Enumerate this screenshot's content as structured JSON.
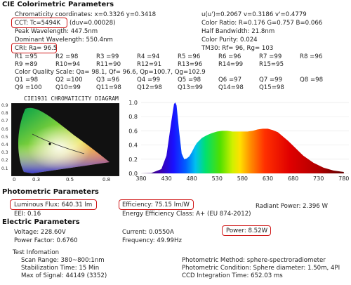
{
  "cie": {
    "title": "CIE Colorimetric Parameters",
    "chroma_xy": "Chromaticity coordinates: x=0.3326  y=0.3418",
    "chroma_uv": "u(u')=0.2067  v=0.3186  v'=0.4779",
    "cct": "CCT: Tc=5494K",
    "duv": "(duv=0.00028)",
    "color_ratio": "Color Ratio: R=0.176  G=0.757  B=0.066",
    "peak_wl": "Peak Wavelength: 447.5nm",
    "half_bw": "Half Bandwidth: 21.8nm",
    "dom_wl": "Dominant Wavelength: 550.4nm",
    "purity": "Color Purity: 0.024",
    "cri": "CRI: Ra= 96.5",
    "tm30": "TM30: Rf=    96, Rg=   103",
    "r_rows": [
      [
        "R1  =95",
        "R2  =98",
        "R3  =99",
        "R4  =94",
        "R5  =96",
        "R6  =96",
        "R7  =99",
        "R8  =96"
      ],
      [
        "R9  =89",
        "R10=94",
        "R11=90",
        "R12=91",
        "R13=96",
        "R14=99",
        "R15=95"
      ]
    ],
    "cqs": "Color Quality Scale: Qa= 98.1, Qf= 96.6, Qp=100.7, Qg=102.9",
    "q_rows": [
      [
        "Q1  =98",
        "Q2  =100",
        "Q3  =96",
        "Q4  =99",
        "Q5  =98",
        "Q6  =97",
        "Q7  =99",
        "Q8  =98"
      ],
      [
        "Q9  =100",
        "Q10=99",
        "Q11=98",
        "Q12=98",
        "Q13=99",
        "Q14=98",
        "Q15=98"
      ]
    ]
  },
  "cie_diagram": {
    "title": "CIE1931 CHROMATICITY DIAGRAM",
    "label": "CIE1931 CHROMATICITY DIAGRAM",
    "y_ticks": [
      "0.9",
      "0.8",
      "0.7",
      "0.6",
      "0.5",
      "0.4",
      "0.3",
      "0.2",
      "0.1"
    ],
    "x_ticks": [
      "0",
      "0.3",
      "0.5",
      "0.8"
    ]
  },
  "chart_data": {
    "type": "area",
    "x": [
      380,
      400,
      420,
      430,
      440,
      445,
      447.5,
      450,
      455,
      460,
      465,
      470,
      475,
      480,
      485,
      490,
      500,
      510,
      520,
      530,
      540,
      550,
      560,
      570,
      580,
      590,
      600,
      610,
      620,
      630,
      640,
      650,
      660,
      670,
      680,
      690,
      700,
      720,
      740,
      760,
      780
    ],
    "values": [
      0.0,
      0.005,
      0.06,
      0.25,
      0.75,
      0.98,
      1.0,
      0.96,
      0.6,
      0.28,
      0.2,
      0.21,
      0.24,
      0.3,
      0.37,
      0.43,
      0.5,
      0.54,
      0.57,
      0.59,
      0.6,
      0.6,
      0.59,
      0.59,
      0.59,
      0.59,
      0.6,
      0.62,
      0.63,
      0.63,
      0.61,
      0.58,
      0.52,
      0.46,
      0.39,
      0.32,
      0.25,
      0.15,
      0.08,
      0.04,
      0.02
    ],
    "xticks": [
      380,
      430,
      480,
      530,
      580,
      630,
      680,
      730,
      780
    ],
    "yticks": [
      0.0,
      0.2,
      0.4,
      0.6,
      0.8,
      1.0
    ],
    "xlim": [
      380,
      790
    ],
    "ylim": [
      0,
      1.05
    ],
    "title": "",
    "xlabel": "",
    "ylabel": ""
  },
  "photometric": {
    "title": "Photometric Parameters",
    "flux": "Luminous Flux: 640.31 lm",
    "efficiency": "Efficiency: 75.15 lm/W",
    "radiant": "Radiant Power: 2.396 W",
    "eei": "EEI:  0.16",
    "energy_class": "Energy Efficiency Class: A+ (EU 874-2012)"
  },
  "electric": {
    "title": "Electric Parameters",
    "voltage": "Voltage: 228.60V",
    "current": "Current: 0.0550A",
    "power": "Power: 8.52W",
    "pf": "Power Factor: 0.6760",
    "frequency": "Frequency: 49.99Hz"
  },
  "test": {
    "title": "Test Infomation",
    "scan": "Scan Range: 380~800:1nm",
    "stab": "Stabilization Time: 15 Min",
    "signal": "Max of Signal: 44149 (3352)",
    "method": "Photometric Method: sphere-spectroradiometer",
    "condition": "Photometric Condition: Sphere diameter: 1.50m, 4PI",
    "integration": "CCD Integration Time: 652.03 ms"
  }
}
